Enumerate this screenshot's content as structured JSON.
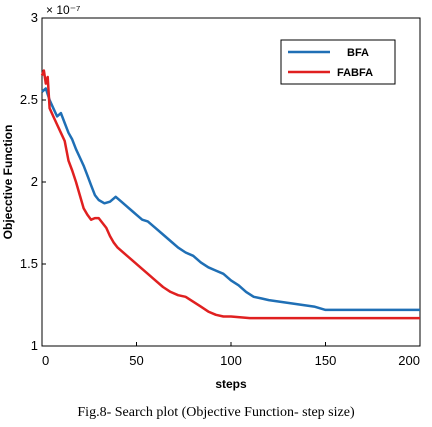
{
  "chart_data": {
    "type": "line",
    "title": "",
    "xlabel": "steps",
    "ylabel": "Objecctive Function",
    "y_exponent": "× 10⁻⁷",
    "xlim": [
      0,
      200
    ],
    "ylim": [
      1,
      3
    ],
    "x_ticks": [
      0,
      50,
      100,
      150,
      200
    ],
    "y_ticks": [
      1,
      1.5,
      2,
      2.5,
      3
    ],
    "y_tick_labels": [
      "1",
      "1.5",
      "2",
      "2.5",
      "3"
    ],
    "grid": false,
    "legend_position": "top-right",
    "series": [
      {
        "name": "BFA",
        "color": "#1f6fb5",
        "points": [
          [
            0,
            2.55
          ],
          [
            2,
            2.57
          ],
          [
            4,
            2.5
          ],
          [
            6,
            2.45
          ],
          [
            8,
            2.4
          ],
          [
            10,
            2.42
          ],
          [
            12,
            2.36
          ],
          [
            14,
            2.3
          ],
          [
            16,
            2.26
          ],
          [
            18,
            2.2
          ],
          [
            20,
            2.15
          ],
          [
            22,
            2.1
          ],
          [
            24,
            2.04
          ],
          [
            26,
            1.98
          ],
          [
            28,
            1.92
          ],
          [
            30,
            1.89
          ],
          [
            33,
            1.87
          ],
          [
            36,
            1.88
          ],
          [
            39,
            1.91
          ],
          [
            42,
            1.88
          ],
          [
            45,
            1.85
          ],
          [
            48,
            1.82
          ],
          [
            50,
            1.8
          ],
          [
            53,
            1.77
          ],
          [
            56,
            1.76
          ],
          [
            60,
            1.72
          ],
          [
            64,
            1.68
          ],
          [
            68,
            1.64
          ],
          [
            72,
            1.6
          ],
          [
            76,
            1.57
          ],
          [
            80,
            1.55
          ],
          [
            84,
            1.51
          ],
          [
            88,
            1.48
          ],
          [
            92,
            1.46
          ],
          [
            96,
            1.44
          ],
          [
            100,
            1.4
          ],
          [
            104,
            1.37
          ],
          [
            108,
            1.33
          ],
          [
            112,
            1.3
          ],
          [
            116,
            1.29
          ],
          [
            120,
            1.28
          ],
          [
            126,
            1.27
          ],
          [
            132,
            1.26
          ],
          [
            138,
            1.25
          ],
          [
            144,
            1.24
          ],
          [
            150,
            1.22
          ],
          [
            160,
            1.22
          ],
          [
            170,
            1.22
          ],
          [
            180,
            1.22
          ],
          [
            190,
            1.22
          ],
          [
            200,
            1.22
          ]
        ]
      },
      {
        "name": "FABFA",
        "color": "#e02020",
        "points": [
          [
            0,
            2.65
          ],
          [
            1,
            2.68
          ],
          [
            2,
            2.6
          ],
          [
            3,
            2.64
          ],
          [
            4,
            2.45
          ],
          [
            6,
            2.4
          ],
          [
            8,
            2.35
          ],
          [
            10,
            2.3
          ],
          [
            12,
            2.25
          ],
          [
            14,
            2.13
          ],
          [
            16,
            2.07
          ],
          [
            18,
            2.0
          ],
          [
            20,
            1.92
          ],
          [
            22,
            1.84
          ],
          [
            24,
            1.8
          ],
          [
            26,
            1.77
          ],
          [
            28,
            1.78
          ],
          [
            30,
            1.78
          ],
          [
            32,
            1.75
          ],
          [
            34,
            1.72
          ],
          [
            36,
            1.67
          ],
          [
            38,
            1.63
          ],
          [
            40,
            1.6
          ],
          [
            44,
            1.56
          ],
          [
            48,
            1.52
          ],
          [
            52,
            1.48
          ],
          [
            56,
            1.44
          ],
          [
            60,
            1.4
          ],
          [
            64,
            1.36
          ],
          [
            68,
            1.33
          ],
          [
            72,
            1.31
          ],
          [
            76,
            1.3
          ],
          [
            80,
            1.27
          ],
          [
            84,
            1.24
          ],
          [
            88,
            1.21
          ],
          [
            92,
            1.19
          ],
          [
            96,
            1.18
          ],
          [
            100,
            1.18
          ],
          [
            110,
            1.17
          ],
          [
            120,
            1.17
          ],
          [
            130,
            1.17
          ],
          [
            140,
            1.17
          ],
          [
            150,
            1.17
          ],
          [
            160,
            1.17
          ],
          [
            170,
            1.17
          ],
          [
            180,
            1.17
          ],
          [
            190,
            1.17
          ],
          [
            200,
            1.17
          ]
        ]
      }
    ]
  },
  "caption": "Fig.8- Search plot  (Objective Function- step size)"
}
